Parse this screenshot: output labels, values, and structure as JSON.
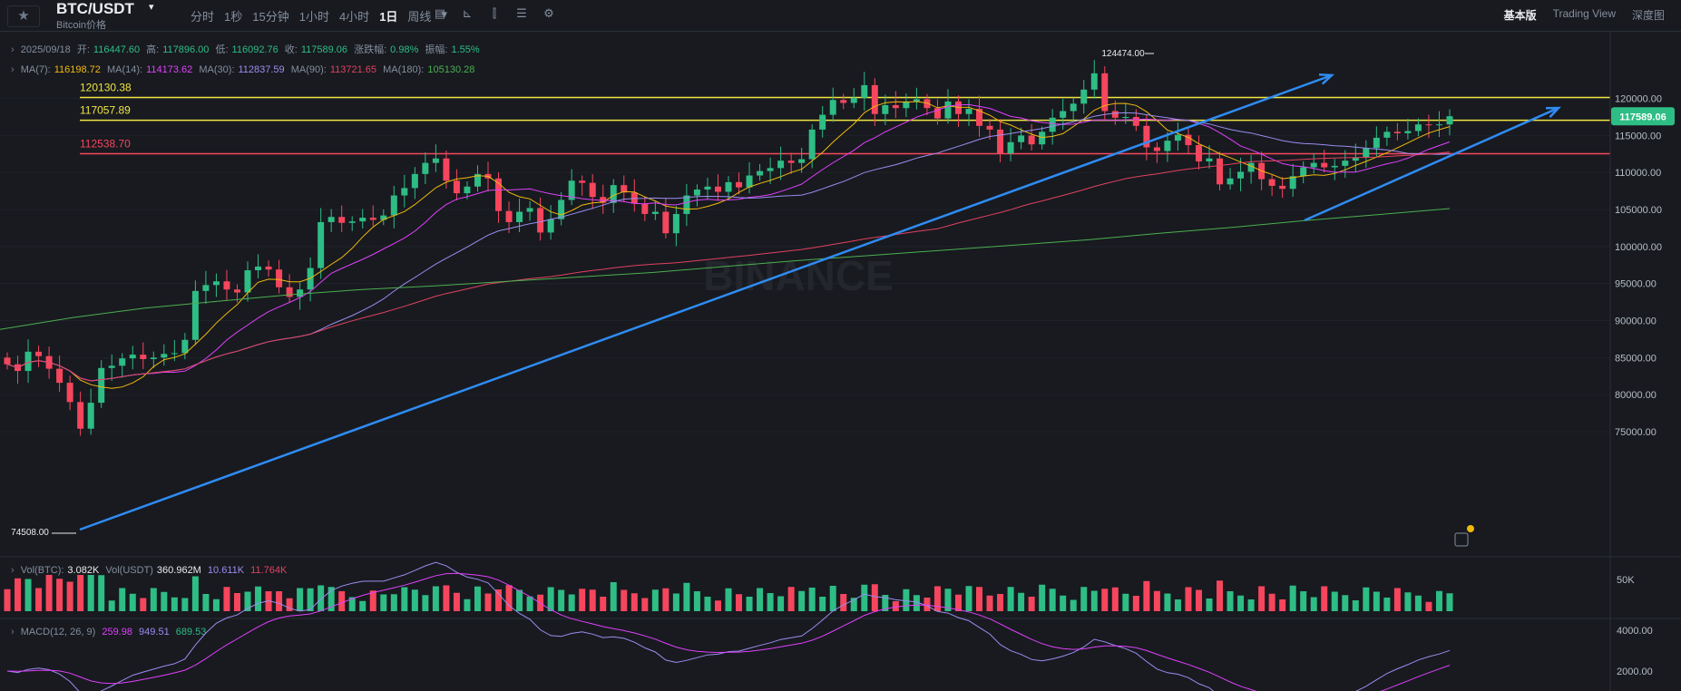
{
  "header": {
    "pair": "BTC/USDT",
    "pair_sub": "Bitcoin价格",
    "intervals": [
      "分时",
      "1秒",
      "15分钟",
      "1小时",
      "4小时",
      "1日",
      "周线"
    ],
    "active_interval": "1日",
    "views": [
      "基本版",
      "Trading View",
      "深度图"
    ],
    "active_view": "基本版"
  },
  "ohlc_bar": {
    "date": "2025/09/18",
    "open_label": "开:",
    "open": "116447.60",
    "high_label": "高:",
    "high": "117896.00",
    "low_label": "低:",
    "low": "116092.76",
    "close_label": "收:",
    "close": "117589.06",
    "change_label": "涨跌幅:",
    "change": "0.98%",
    "amp_label": "振幅:",
    "amp": "1.55%"
  },
  "ma_bar": {
    "items": [
      {
        "label": "MA(7):",
        "value": "116198.72",
        "color": "#f0b90b"
      },
      {
        "label": "MA(14):",
        "value": "114173.62",
        "color": "#e040fb"
      },
      {
        "label": "MA(30):",
        "value": "112837.59",
        "color": "#9c8cf0"
      },
      {
        "label": "MA(90):",
        "value": "113721.65",
        "color": "#e0425e"
      },
      {
        "label": "MA(180):",
        "value": "105130.28",
        "color": "#4caf50"
      }
    ]
  },
  "vol_bar": {
    "vol_btc_label": "Vol(BTC):",
    "vol_btc": "3.082K",
    "vol_usdt_label": "Vol(USDT)",
    "vol_usdt": "360.962M",
    "v1": "10.611K",
    "v2": "11.764K"
  },
  "macd_bar": {
    "label": "MACD(12, 26, 9)",
    "dif": "259.98",
    "dea": "949.51",
    "hist": "689.53"
  },
  "chart_data": {
    "type": "candlestick",
    "y_axis": [
      "120000.00",
      "115000.00",
      "110000.00",
      "105000.00",
      "100000.00",
      "95000.00",
      "90000.00",
      "85000.00",
      "80000.00",
      "75000.00"
    ],
    "ylim": [
      73000,
      126000
    ],
    "horizontal_lines": [
      {
        "label": "120130.38",
        "value": 120130.38,
        "color": "#f0e442"
      },
      {
        "label": "117057.89",
        "value": 117057.89,
        "color": "#f0e442"
      },
      {
        "label": "112538.70",
        "value": 112538.7,
        "color": "#f6465d"
      }
    ],
    "current_price": "117589.06",
    "annotations": [
      {
        "label": "124474.00",
        "value": 124474.0
      },
      {
        "label": "74508.00",
        "value": 74508.0
      }
    ],
    "volume_axis": [
      "50K"
    ],
    "macd_axis": [
      "4000.00",
      "2000.00"
    ],
    "colors": {
      "up": "#2ebd85",
      "down": "#f6465d",
      "trend": "#2f8cf3",
      "accent": "#2ebd85"
    },
    "closes": [
      84100,
      83200,
      85800,
      85200,
      83500,
      81600,
      79000,
      75400,
      78900,
      83600,
      83900,
      84900,
      85400,
      84800,
      85000,
      85500,
      85600,
      87400,
      94000,
      94800,
      95300,
      94200,
      93800,
      96800,
      97300,
      96900,
      94500,
      93200,
      94200,
      97100,
      103300,
      104000,
      103200,
      103400,
      103900,
      103600,
      104200,
      106900,
      107900,
      109800,
      111300,
      111900,
      108900,
      107200,
      108100,
      109800,
      109200,
      104800,
      103300,
      104700,
      105200,
      101900,
      103700,
      106300,
      108900,
      108600,
      106700,
      105900,
      108300,
      107300,
      105800,
      104400,
      104700,
      101800,
      104400,
      106900,
      107700,
      108100,
      107400,
      108700,
      108000,
      109600,
      110200,
      110600,
      111600,
      111300,
      111800,
      115800,
      117800,
      119800,
      119400,
      120100,
      121800,
      117900,
      119100,
      118700,
      119600,
      119900,
      118700,
      117300,
      119600,
      117900,
      118600,
      116300,
      115800,
      112600,
      114100,
      115000,
      113800,
      115500,
      117400,
      118300,
      119300,
      121200,
      123400,
      118300,
      117400,
      117500,
      116300,
      113400,
      112900,
      114300,
      115100,
      113700,
      111500,
      111900,
      108400,
      109200,
      110100,
      111300,
      109100,
      108200,
      107800,
      109500,
      110700,
      111300,
      110700,
      110900,
      111600,
      112000,
      113300,
      114700,
      115500,
      115300,
      115600,
      116500,
      116400,
      116500,
      117600
    ],
    "ma180": [
      88800,
      90400,
      91700,
      92600,
      93500,
      94200,
      94700,
      95300,
      95900,
      96500,
      97300,
      98100,
      98800,
      99500,
      100200,
      100900,
      101800,
      102600,
      103500,
      104300,
      105130
    ]
  }
}
